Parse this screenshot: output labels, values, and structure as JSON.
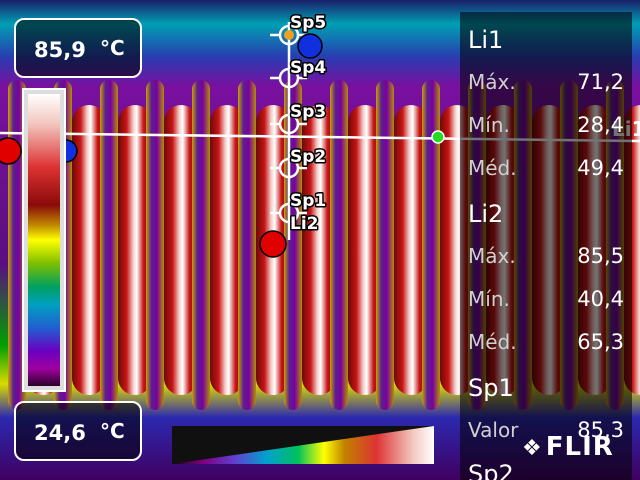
{
  "temperature_range": {
    "max_value": "85,9",
    "max_unit": "°C",
    "min_value": "24,6",
    "min_unit": "°C"
  },
  "spot_labels": [
    "Sp5",
    "Sp4",
    "Sp3",
    "Sp2",
    "Sp1"
  ],
  "line_labels": {
    "li1": "Li1",
    "li2": "Li2"
  },
  "measurements": {
    "li1": {
      "title": "Li1",
      "rows": [
        {
          "label": "Máx.",
          "value": "71,2"
        },
        {
          "label": "Mín.",
          "value": "28,4"
        },
        {
          "label": "Méd.",
          "value": "49,4"
        }
      ]
    },
    "li2": {
      "title": "Li2",
      "rows": [
        {
          "label": "Máx.",
          "value": "85,5"
        },
        {
          "label": "Mín.",
          "value": "40,4"
        },
        {
          "label": "Méd.",
          "value": "65,3"
        }
      ]
    },
    "sp1": {
      "title": "Sp1",
      "rows": [
        {
          "label": "Valor",
          "value": "85,3"
        }
      ]
    },
    "sp2": {
      "title": "Sp2"
    }
  },
  "brand": {
    "name": "FLIR"
  },
  "icons": {
    "hot_marker": "red-circle-icon",
    "cold_marker": "blue-circle-icon",
    "line_end_marker": "green-dot-icon",
    "brand_logo": "flir-flame-icon"
  },
  "palette": {
    "hot_marker": "#e00000",
    "cold_marker": "#1030e0",
    "line_end_marker": "#22dd22",
    "overlay_line": "#ffffff"
  }
}
